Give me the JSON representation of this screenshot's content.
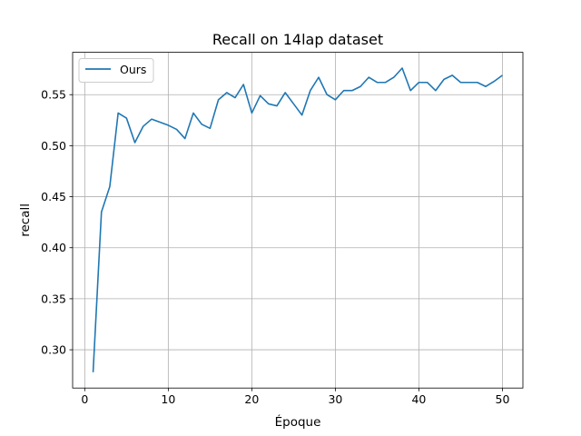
{
  "chart_data": {
    "type": "line",
    "title": "Recall on 14lap dataset",
    "xlabel": "Époque",
    "ylabel": "recall",
    "xlim": [
      -1.45,
      52.45
    ],
    "ylim": [
      0.2625,
      0.5915
    ],
    "xticks": [
      0,
      10,
      20,
      30,
      40,
      50
    ],
    "yticks": [
      0.3,
      0.35,
      0.4,
      0.45,
      0.5,
      0.55
    ],
    "xtick_labels": [
      "0",
      "10",
      "20",
      "30",
      "40",
      "50"
    ],
    "ytick_labels": [
      "0.30",
      "0.35",
      "0.40",
      "0.45",
      "0.50",
      "0.55"
    ],
    "grid": true,
    "legend": {
      "location": "upper left",
      "entries": [
        "Ours"
      ]
    },
    "series": [
      {
        "name": "Ours",
        "color": "#1f77b4",
        "x": [
          1,
          2,
          3,
          4,
          5,
          6,
          7,
          8,
          9,
          10,
          11,
          12,
          13,
          14,
          15,
          16,
          17,
          18,
          19,
          20,
          21,
          22,
          23,
          24,
          25,
          26,
          27,
          28,
          29,
          30,
          31,
          32,
          33,
          34,
          35,
          36,
          37,
          38,
          39,
          40,
          41,
          42,
          43,
          44,
          45,
          46,
          47,
          48,
          49,
          50
        ],
        "values": [
          0.278,
          0.435,
          0.46,
          0.532,
          0.527,
          0.503,
          0.519,
          0.526,
          0.523,
          0.52,
          0.516,
          0.507,
          0.532,
          0.521,
          0.517,
          0.545,
          0.552,
          0.547,
          0.56,
          0.532,
          0.549,
          0.541,
          0.539,
          0.552,
          0.541,
          0.53,
          0.554,
          0.567,
          0.55,
          0.545,
          0.554,
          0.554,
          0.558,
          0.567,
          0.562,
          0.562,
          0.567,
          0.576,
          0.554,
          0.562,
          0.562,
          0.554,
          0.565,
          0.569,
          0.562,
          0.562,
          0.562,
          0.558,
          0.563,
          0.569
        ]
      }
    ]
  }
}
